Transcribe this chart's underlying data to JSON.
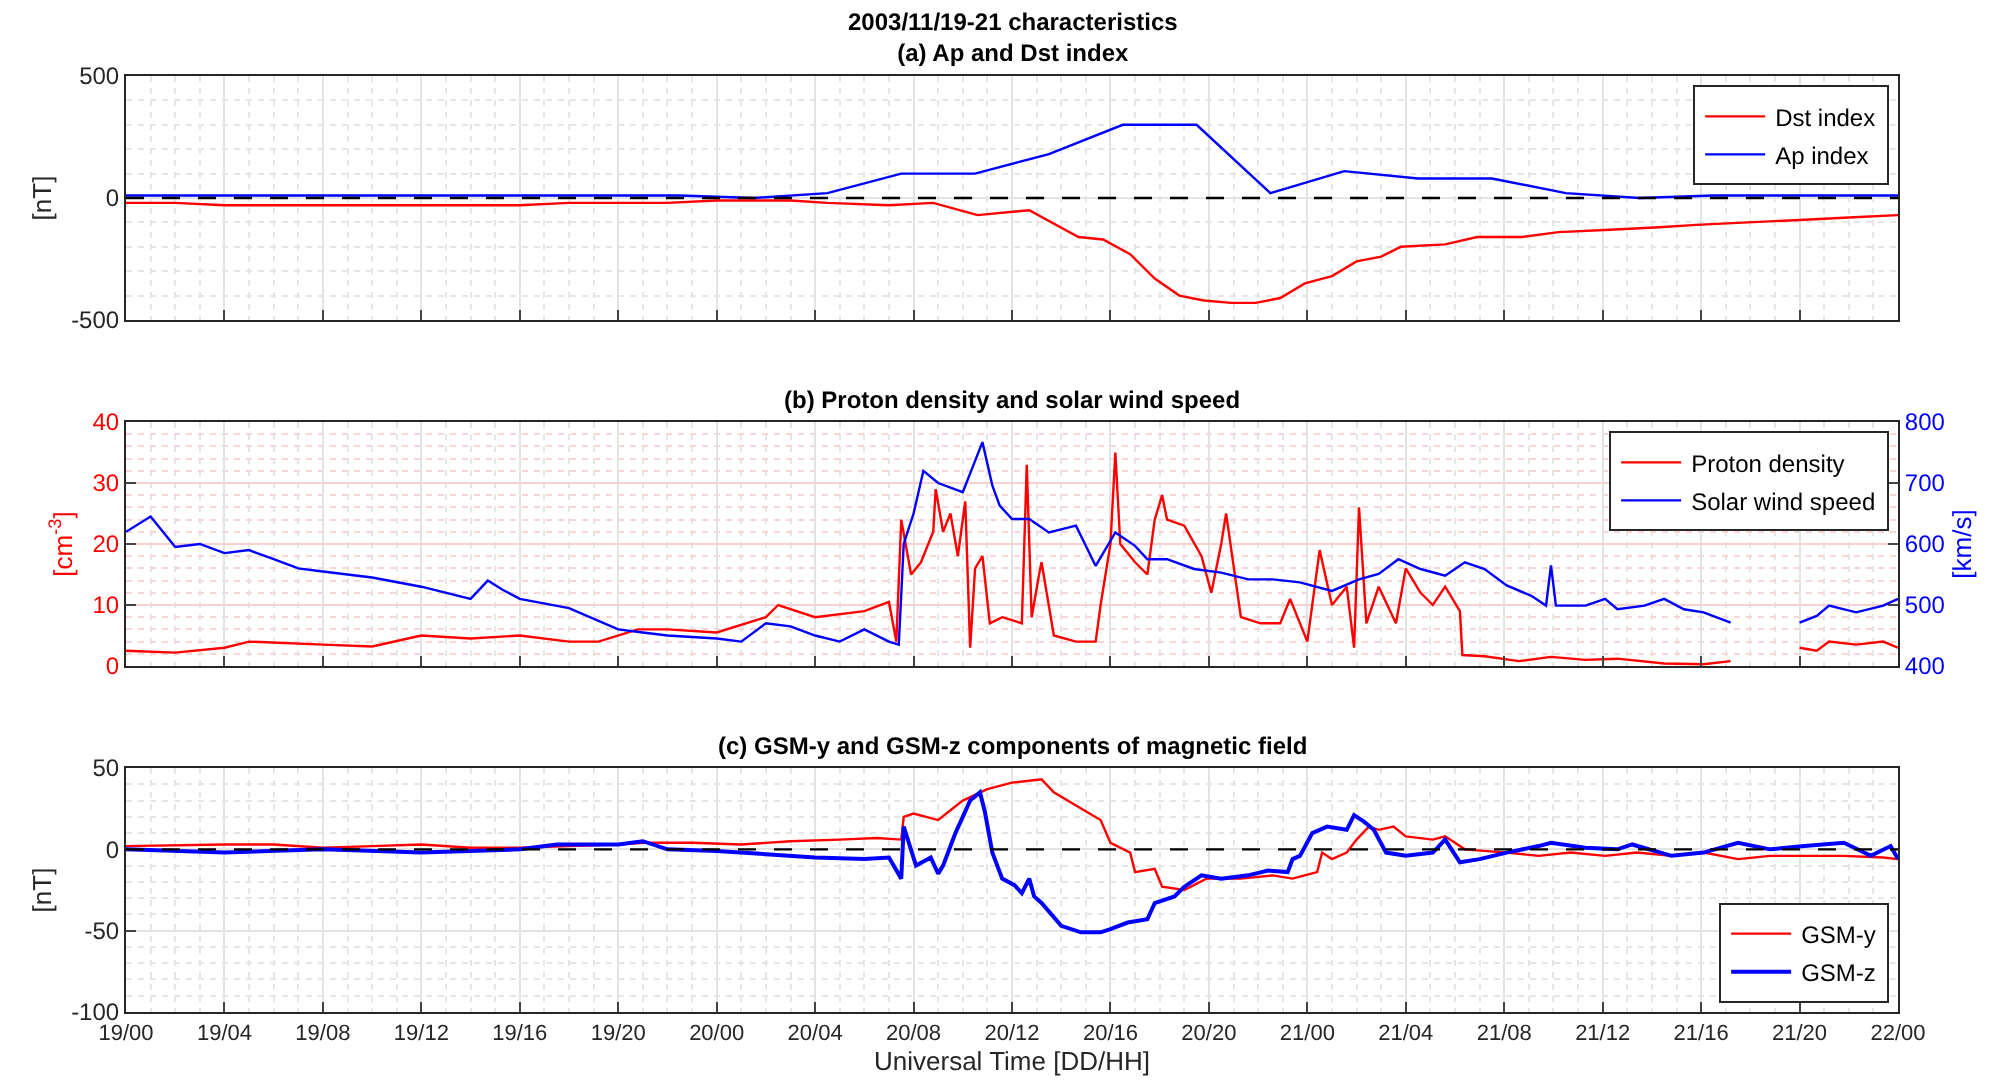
{
  "chart_data": [
    {
      "type": "line",
      "title": "2003/11/19-21 characteristics",
      "subtitle": "(a) Ap and Dst index",
      "ylabel": "[nT]",
      "xlim": [
        "2003-11-19T00:00",
        "2003-11-22T00:00"
      ],
      "xticks": [
        {
          "value": "2003-11-19T00:00",
          "label": null
        },
        {
          "value": "2003-11-19T04:00",
          "label": null
        },
        {
          "value": "2003-11-19T08:00",
          "label": null
        },
        {
          "value": "2003-11-19T12:00",
          "label": null
        },
        {
          "value": "2003-11-19T16:00",
          "label": null
        },
        {
          "value": "2003-11-19T20:00",
          "label": null
        },
        {
          "value": "2003-11-20T00:00",
          "label": null
        },
        {
          "value": "2003-11-20T04:00",
          "label": null
        },
        {
          "value": "2003-11-20T08:00",
          "label": null
        },
        {
          "value": "2003-11-20T12:00",
          "label": null
        },
        {
          "value": "2003-11-20T16:00",
          "label": null
        },
        {
          "value": "2003-11-20T20:00",
          "label": null
        },
        {
          "value": "2003-11-21T00:00",
          "label": null
        },
        {
          "value": "2003-11-21T04:00",
          "label": null
        },
        {
          "value": "2003-11-21T08:00",
          "label": null
        },
        {
          "value": "2003-11-21T12:00",
          "label": null
        },
        {
          "value": "2003-11-21T16:00",
          "label": null
        },
        {
          "value": "2003-11-21T20:00",
          "label": null
        },
        {
          "value": "2003-11-22T00:00",
          "label": null
        }
      ],
      "ylim": [
        -500,
        500
      ],
      "yticks": [
        -500,
        0,
        500
      ],
      "tick_labels": "y",
      "grid": true,
      "legend": "top right",
      "line_style": "solid",
      "ref_lines": [
        {
          "axis": "y",
          "value": 0,
          "color": "#000000",
          "line_style": "dashed"
        }
      ],
      "series": [
        {
          "name": "Dst index",
          "color": "#ff0000",
          "x": [
            "2003-11-19T00:00",
            "2003-11-19T02:00",
            "2003-11-19T04:00",
            "2003-11-19T06:00",
            "2003-11-19T08:00",
            "2003-11-19T10:00",
            "2003-11-19T12:00",
            "2003-11-19T14:00",
            "2003-11-19T16:00",
            "2003-11-19T18:00",
            "2003-11-19T20:00",
            "2003-11-19T22:00",
            "2003-11-20T00:00",
            "2003-11-20T02:00",
            "2003-11-20T03:00",
            "2003-11-20T04:30",
            "2003-11-20T07:00",
            "2003-11-20T08:48",
            "2003-11-20T10:36",
            "2003-11-20T12:42",
            "2003-11-20T14:42",
            "2003-11-20T15:42",
            "2003-11-20T16:48",
            "2003-11-20T17:48",
            "2003-11-20T18:48",
            "2003-11-20T19:48",
            "2003-11-20T20:54",
            "2003-11-20T21:54",
            "2003-11-20T22:54",
            "2003-11-20T23:54",
            "2003-11-21T01:00",
            "2003-11-21T02:00",
            "2003-11-21T03:00",
            "2003-11-21T03:48",
            "2003-11-21T05:36",
            "2003-11-21T06:54",
            "2003-11-21T08:42",
            "2003-11-21T10:12",
            "2003-11-21T12:18",
            "2003-11-21T14:18",
            "2003-11-21T15:48",
            "2003-11-21T17:54",
            "2003-11-21T20:00",
            "2003-11-21T22:00",
            "2003-11-22T00:00"
          ],
          "values": [
            -20,
            -20,
            -30,
            -30,
            -30,
            -30,
            -30,
            -30,
            -30,
            -20,
            -20,
            -20,
            -10,
            -10,
            -10,
            -20,
            -30,
            -20,
            -70,
            -50,
            -160,
            -170,
            -230,
            -330,
            -400,
            -420,
            -430,
            -430,
            -410,
            -350,
            -320,
            -260,
            -240,
            -200,
            -190,
            -160,
            -160,
            -140,
            -130,
            -120,
            -110,
            -100,
            -90,
            -80,
            -70
          ]
        },
        {
          "name": "Ap index",
          "color": "#0000ff",
          "x": [
            "2003-11-19T00:00",
            "2003-11-19T01:30",
            "2003-11-19T04:30",
            "2003-11-19T07:30",
            "2003-11-19T10:30",
            "2003-11-19T13:30",
            "2003-11-19T16:30",
            "2003-11-19T19:30",
            "2003-11-19T22:30",
            "2003-11-20T01:30",
            "2003-11-20T04:30",
            "2003-11-20T07:30",
            "2003-11-20T10:30",
            "2003-11-20T13:30",
            "2003-11-20T16:30",
            "2003-11-20T19:30",
            "2003-11-20T22:30",
            "2003-11-21T01:30",
            "2003-11-21T04:30",
            "2003-11-21T07:30",
            "2003-11-21T10:30",
            "2003-11-21T13:30",
            "2003-11-21T16:30",
            "2003-11-21T19:30",
            "2003-11-21T22:30",
            "2003-11-22T00:00"
          ],
          "values": [
            10,
            10,
            10,
            10,
            10,
            10,
            10,
            10,
            10,
            0,
            20,
            100,
            100,
            180,
            300,
            300,
            20,
            110,
            80,
            80,
            20,
            0,
            10,
            10,
            10,
            10
          ]
        }
      ]
    },
    {
      "type": "line",
      "title": "(b) Proton density and solar wind speed",
      "ylabel": "[cm$^{-3}$]",
      "y2label": "[km/s]",
      "xlim": [
        "2003-11-19T00:00",
        "2003-11-22T00:00"
      ],
      "xticks": [
        {
          "value": "2003-11-19T00:00",
          "label": null
        },
        {
          "value": "2003-11-19T04:00",
          "label": null
        },
        {
          "value": "2003-11-19T08:00",
          "label": null
        },
        {
          "value": "2003-11-19T12:00",
          "label": null
        },
        {
          "value": "2003-11-19T16:00",
          "label": null
        },
        {
          "value": "2003-11-19T20:00",
          "label": null
        },
        {
          "value": "2003-11-20T00:00",
          "label": null
        },
        {
          "value": "2003-11-20T04:00",
          "label": null
        },
        {
          "value": "2003-11-20T08:00",
          "label": null
        },
        {
          "value": "2003-11-20T12:00",
          "label": null
        },
        {
          "value": "2003-11-20T16:00",
          "label": null
        },
        {
          "value": "2003-11-20T20:00",
          "label": null
        },
        {
          "value": "2003-11-21T00:00",
          "label": null
        },
        {
          "value": "2003-11-21T04:00",
          "label": null
        },
        {
          "value": "2003-11-21T08:00",
          "label": null
        },
        {
          "value": "2003-11-21T12:00",
          "label": null
        },
        {
          "value": "2003-11-21T16:00",
          "label": null
        },
        {
          "value": "2003-11-21T20:00",
          "label": null
        },
        {
          "value": "2003-11-22T00:00",
          "label": null
        }
      ],
      "ylim": [
        0,
        40
      ],
      "yticks": [
        0,
        10,
        20,
        30,
        40
      ],
      "y2lim": [
        400,
        800
      ],
      "y2ticks": [
        400,
        500,
        600,
        700,
        800
      ],
      "tick_labels": "y",
      "grid": true,
      "legend": "top right",
      "line_style": "solid",
      "series": [
        {
          "name": "Proton density",
          "color": "#ff0000",
          "x": [
            "2003-11-19T00:00",
            "2003-11-19T02:00",
            "2003-11-19T04:00",
            "2003-11-19T05:00",
            "2003-11-19T08:00",
            "2003-11-19T10:00",
            "2003-11-19T12:00",
            "2003-11-19T14:00",
            "2003-11-19T16:00",
            "2003-11-19T18:00",
            "2003-11-19T19:12",
            "2003-11-19T20:48",
            "2003-11-19T22:00",
            "2003-11-20T00:00",
            "2003-11-20T02:00",
            "2003-11-20T02:30",
            "2003-11-20T04:00",
            "2003-11-20T06:00",
            "2003-11-20T07:00",
            "2003-11-20T07:18",
            "2003-11-20T07:30",
            "2003-11-20T07:54",
            "2003-11-20T08:18",
            "2003-11-20T08:48",
            "2003-11-20T08:54",
            "2003-11-20T09:12",
            "2003-11-20T09:30",
            "2003-11-20T09:48",
            "2003-11-20T10:06",
            "2003-11-20T10:18",
            "2003-11-20T10:30",
            "2003-11-20T10:48",
            "2003-11-20T11:06",
            "2003-11-20T11:36",
            "2003-11-20T12:24",
            "2003-11-20T12:36",
            "2003-11-20T12:48",
            "2003-11-20T13:06",
            "2003-11-20T13:12",
            "2003-11-20T13:42",
            "2003-11-20T14:36",
            "2003-11-20T15:24",
            "2003-11-20T15:36",
            "2003-11-20T16:00",
            "2003-11-20T16:12",
            "2003-11-20T16:24",
            "2003-11-20T17:00",
            "2003-11-20T17:30",
            "2003-11-20T17:48",
            "2003-11-20T18:06",
            "2003-11-20T18:18",
            "2003-11-20T19:00",
            "2003-11-20T19:42",
            "2003-11-20T20:06",
            "2003-11-20T20:30",
            "2003-11-20T20:42",
            "2003-11-20T21:18",
            "2003-11-20T22:06",
            "2003-11-20T22:54",
            "2003-11-20T23:18",
            "2003-11-21T00:00",
            "2003-11-21T00:30",
            "2003-11-21T01:00",
            "2003-11-21T01:36",
            "2003-11-21T01:54",
            "2003-11-21T02:06",
            "2003-11-21T02:24",
            "2003-11-21T02:54",
            "2003-11-21T03:36",
            "2003-11-21T04:00",
            "2003-11-21T04:36",
            "2003-11-21T05:06",
            "2003-11-21T05:36",
            "2003-11-21T06:12",
            "2003-11-21T06:18",
            "2003-11-21T07:12",
            "2003-11-21T08:36",
            "2003-11-21T09:54",
            "2003-11-21T11:18",
            "2003-11-21T12:36",
            "2003-11-21T14:30",
            "2003-11-21T16:06",
            "2003-11-21T17:12",
            "2003-11-21T18:30",
            "2003-11-21T20:00",
            "2003-11-21T20:42",
            "2003-11-21T21:12",
            "2003-11-21T22:18",
            "2003-11-21T23:24",
            "2003-11-22T00:00"
          ],
          "values": [
            2.5,
            2.2,
            3,
            4,
            3.5,
            3.2,
            5,
            4.5,
            5,
            4,
            4,
            6,
            6,
            5.5,
            8,
            10,
            8,
            9,
            10.5,
            4,
            24,
            15,
            17,
            22,
            29,
            22,
            25,
            18,
            27,
            3,
            16,
            18,
            7,
            8,
            7,
            33,
            8,
            15,
            17,
            5,
            4,
            4,
            10,
            20,
            35,
            20,
            17,
            15,
            24,
            28,
            24,
            23,
            18,
            12,
            20,
            25,
            8,
            7,
            7,
            11,
            4,
            19,
            10,
            13,
            3,
            26,
            7,
            13,
            7,
            16,
            12,
            10,
            13,
            9,
            1.8,
            1.6,
            0.8,
            1.5,
            1,
            1.2,
            0.4,
            0.3,
            0.8,
            null,
            3,
            2.5,
            4,
            3.5,
            4,
            3
          ]
        },
        {
          "name": "Solar wind speed",
          "color": "#0000ff",
          "axis": "y2",
          "x": [
            "2003-11-19T00:00",
            "2003-11-19T01:00",
            "2003-11-19T02:00",
            "2003-11-19T03:00",
            "2003-11-19T04:00",
            "2003-11-19T05:00",
            "2003-11-19T06:00",
            "2003-11-19T07:00",
            "2003-11-19T08:00",
            "2003-11-19T10:00",
            "2003-11-19T12:00",
            "2003-11-19T14:00",
            "2003-11-19T14:42",
            "2003-11-19T15:18",
            "2003-11-19T16:00",
            "2003-11-19T18:00",
            "2003-11-19T20:00",
            "2003-11-19T21:00",
            "2003-11-19T22:00",
            "2003-11-20T00:00",
            "2003-11-20T01:00",
            "2003-11-20T02:00",
            "2003-11-20T03:00",
            "2003-11-20T04:00",
            "2003-11-20T05:00",
            "2003-11-20T06:00",
            "2003-11-20T07:00",
            "2003-11-20T07:24",
            "2003-11-20T07:36",
            "2003-11-20T08:00",
            "2003-11-20T08:24",
            "2003-11-20T09:00",
            "2003-11-20T10:00",
            "2003-11-20T10:48",
            "2003-11-20T11:12",
            "2003-11-20T11:30",
            "2003-11-20T12:00",
            "2003-11-20T12:42",
            "2003-11-20T13:30",
            "2003-11-20T14:36",
            "2003-11-20T15:24",
            "2003-11-20T16:12",
            "2003-11-20T17:00",
            "2003-11-20T17:30",
            "2003-11-20T18:18",
            "2003-11-20T19:24",
            "2003-11-20T20:30",
            "2003-11-20T21:36",
            "2003-11-20T22:36",
            "2003-11-20T23:42",
            "2003-11-21T01:00",
            "2003-11-21T02:06",
            "2003-11-21T02:54",
            "2003-11-21T03:42",
            "2003-11-21T04:36",
            "2003-11-21T05:36",
            "2003-11-21T06:24",
            "2003-11-21T07:12",
            "2003-11-21T08:06",
            "2003-11-21T09:06",
            "2003-11-21T09:42",
            "2003-11-21T09:54",
            "2003-11-21T10:06",
            "2003-11-21T11:18",
            "2003-11-21T12:06",
            "2003-11-21T12:36",
            "2003-11-21T13:42",
            "2003-11-21T14:30",
            "2003-11-21T15:18",
            "2003-11-21T16:06",
            "2003-11-21T17:12",
            "2003-11-21T18:30",
            "2003-11-21T20:00",
            "2003-11-21T20:42",
            "2003-11-21T21:12",
            "2003-11-21T22:18",
            "2003-11-21T23:24",
            "2003-11-22T00:00"
          ],
          "values": [
            620,
            645,
            595,
            600,
            585,
            590,
            575,
            560,
            555,
            545,
            530,
            510,
            540,
            525,
            510,
            495,
            460,
            455,
            450,
            445,
            440,
            470,
            465,
            450,
            440,
            460,
            440,
            435,
            600,
            650,
            720,
            700,
            685,
            767,
            696,
            663,
            641,
            641,
            619,
            630,
            564,
            619,
            597,
            575,
            575,
            559,
            553,
            542,
            542,
            537,
            523,
            542,
            551,
            575,
            559,
            548,
            570,
            559,
            532,
            515,
            499,
            565,
            499,
            499,
            510,
            493,
            499,
            510,
            493,
            488,
            471,
            null,
            471,
            482,
            499,
            488,
            499,
            510
          ]
        }
      ]
    },
    {
      "type": "line",
      "title": "(c) GSM-y and GSM-z components of magnetic field",
      "xlabel": "Universal Time [DD/HH]",
      "ylabel": "[nT]",
      "xlim": [
        "2003-11-19T00:00",
        "2003-11-22T00:00"
      ],
      "xticks": [
        {
          "value": "2003-11-19T00:00",
          "label": "19/00"
        },
        {
          "value": "2003-11-19T04:00",
          "label": "19/04"
        },
        {
          "value": "2003-11-19T08:00",
          "label": "19/08"
        },
        {
          "value": "2003-11-19T12:00",
          "label": "19/12"
        },
        {
          "value": "2003-11-19T16:00",
          "label": "19/16"
        },
        {
          "value": "2003-11-19T20:00",
          "label": "19/20"
        },
        {
          "value": "2003-11-20T00:00",
          "label": "20/00"
        },
        {
          "value": "2003-11-20T04:00",
          "label": "20/04"
        },
        {
          "value": "2003-11-20T08:00",
          "label": "20/08"
        },
        {
          "value": "2003-11-20T12:00",
          "label": "20/12"
        },
        {
          "value": "2003-11-20T16:00",
          "label": "20/16"
        },
        {
          "value": "2003-11-20T20:00",
          "label": "20/20"
        },
        {
          "value": "2003-11-21T00:00",
          "label": "21/00"
        },
        {
          "value": "2003-11-21T04:00",
          "label": "21/04"
        },
        {
          "value": "2003-11-21T08:00",
          "label": "21/08"
        },
        {
          "value": "2003-11-21T12:00",
          "label": "21/12"
        },
        {
          "value": "2003-11-21T16:00",
          "label": "21/16"
        },
        {
          "value": "2003-11-21T20:00",
          "label": "21/20"
        },
        {
          "value": "2003-11-22T00:00",
          "label": "22/00"
        }
      ],
      "ylim": [
        -100,
        50
      ],
      "yticks": [
        -100,
        -50,
        0,
        50
      ],
      "grid": true,
      "legend": "bottom right",
      "line_style": "solid",
      "ref_lines": [
        {
          "axis": "y",
          "value": 0,
          "color": "#000000",
          "line_style": "dashed"
        }
      ],
      "series": [
        {
          "name": "GSM-y",
          "color": "#ff0000",
          "x": [
            "2003-11-19T00:00",
            "2003-11-19T04:00",
            "2003-11-19T06:00",
            "2003-11-19T08:00",
            "2003-11-19T10:00",
            "2003-11-19T12:00",
            "2003-11-19T14:00",
            "2003-11-19T16:00",
            "2003-11-19T18:00",
            "2003-11-19T20:00",
            "2003-11-19T21:00",
            "2003-11-19T23:00",
            "2003-11-20T01:00",
            "2003-11-20T03:00",
            "2003-11-20T05:00",
            "2003-11-20T06:30",
            "2003-11-20T07:30",
            "2003-11-20T07:36",
            "2003-11-20T08:00",
            "2003-11-20T09:00",
            "2003-11-20T10:00",
            "2003-11-20T11:00",
            "2003-11-20T12:00",
            "2003-11-20T13:12",
            "2003-11-20T13:42",
            "2003-11-20T14:36",
            "2003-11-20T15:36",
            "2003-11-20T16:00",
            "2003-11-20T16:48",
            "2003-11-20T17:00",
            "2003-11-20T17:48",
            "2003-11-20T18:06",
            "2003-11-20T19:00",
            "2003-11-20T19:54",
            "2003-11-20T21:18",
            "2003-11-20T22:36",
            "2003-11-20T23:24",
            "2003-11-21T00:24",
            "2003-11-21T00:36",
            "2003-11-21T01:00",
            "2003-11-21T01:36",
            "2003-11-21T02:00",
            "2003-11-21T02:30",
            "2003-11-21T02:54",
            "2003-11-21T03:30",
            "2003-11-21T04:00",
            "2003-11-21T05:06",
            "2003-11-21T05:36",
            "2003-11-21T06:24",
            "2003-11-21T08:06",
            "2003-11-21T09:24",
            "2003-11-21T10:42",
            "2003-11-21T12:06",
            "2003-11-21T13:24",
            "2003-11-21T14:48",
            "2003-11-21T16:06",
            "2003-11-21T17:30",
            "2003-11-21T18:48",
            "2003-11-21T20:12",
            "2003-11-21T21:48",
            "2003-11-21T23:24",
            "2003-11-22T00:00"
          ],
          "values": [
            2,
            3,
            3,
            1,
            2,
            3,
            1,
            1,
            2,
            3,
            4,
            4,
            3,
            5,
            6,
            7,
            6,
            20,
            22,
            18,
            30,
            37,
            41,
            43,
            35,
            27,
            18,
            4,
            -2,
            -14,
            -12,
            -23,
            -25,
            -18,
            -18,
            -16,
            -18,
            -14,
            -2,
            -6,
            -2,
            6,
            14,
            12,
            14,
            8,
            6,
            8,
            0,
            -2,
            -4,
            -2,
            -4,
            -2,
            -4,
            -2,
            -6,
            -4,
            -4,
            -4,
            -5,
            -6
          ]
        },
        {
          "name": "GSM-z",
          "color": "#0000ff",
          "x": [
            "2003-11-19T00:00",
            "2003-11-19T04:00",
            "2003-11-19T08:00",
            "2003-11-19T12:00",
            "2003-11-19T16:00",
            "2003-11-19T17:30",
            "2003-11-19T20:00",
            "2003-11-19T21:00",
            "2003-11-19T22:00",
            "2003-11-20T00:00",
            "2003-11-20T02:00",
            "2003-11-20T04:00",
            "2003-11-20T06:00",
            "2003-11-20T07:00",
            "2003-11-20T07:30",
            "2003-11-20T07:36",
            "2003-11-20T08:06",
            "2003-11-20T08:42",
            "2003-11-20T09:00",
            "2003-11-20T09:12",
            "2003-11-20T09:42",
            "2003-11-20T10:00",
            "2003-11-20T10:18",
            "2003-11-20T10:42",
            "2003-11-20T10:54",
            "2003-11-20T11:12",
            "2003-11-20T11:36",
            "2003-11-20T12:06",
            "2003-11-20T12:24",
            "2003-11-20T12:42",
            "2003-11-20T12:54",
            "2003-11-20T13:12",
            "2003-11-20T14:00",
            "2003-11-20T14:48",
            "2003-11-20T15:36",
            "2003-11-20T16:00",
            "2003-11-20T16:42",
            "2003-11-20T17:30",
            "2003-11-20T17:48",
            "2003-11-20T18:36",
            "2003-11-20T19:00",
            "2003-11-20T19:42",
            "2003-11-20T20:30",
            "2003-11-20T21:36",
            "2003-11-20T22:24",
            "2003-11-20T23:12",
            "2003-11-20T23:24",
            "2003-11-20T23:42",
            "2003-11-21T00:12",
            "2003-11-21T00:48",
            "2003-11-21T01:36",
            "2003-11-21T01:54",
            "2003-11-21T02:18",
            "2003-11-21T02:42",
            "2003-11-21T03:12",
            "2003-11-21T04:00",
            "2003-11-21T05:06",
            "2003-11-21T05:36",
            "2003-11-21T06:12",
            "2003-11-21T07:00",
            "2003-11-21T08:06",
            "2003-11-21T09:24",
            "2003-11-21T09:54",
            "2003-11-21T11:18",
            "2003-11-21T12:36",
            "2003-11-21T13:12",
            "2003-11-21T14:48",
            "2003-11-21T16:06",
            "2003-11-21T17:30",
            "2003-11-21T18:48",
            "2003-11-21T20:12",
            "2003-11-21T21:48",
            "2003-11-21T22:54",
            "2003-11-21T23:42",
            "2003-11-22T00:00"
          ],
          "values": [
            0,
            -2,
            0,
            -2,
            0,
            3,
            3,
            5,
            0,
            -1,
            -3,
            -5,
            -6,
            -5,
            -18,
            14,
            -10,
            -5,
            -15,
            -10,
            10,
            20,
            30,
            35,
            23,
            -2,
            -18,
            -22,
            -27,
            -18,
            -29,
            -33,
            -47,
            -51,
            -51,
            -49,
            -45,
            -43,
            -33,
            -29,
            -23,
            -16,
            -18,
            -16,
            -13,
            -14,
            -6,
            -4,
            10,
            14,
            12,
            21,
            17,
            12,
            -2,
            -4,
            -2,
            6,
            -8,
            -6,
            -2,
            2,
            4,
            1,
            0,
            3,
            -4,
            -2,
            4,
            0,
            2,
            4,
            -4,
            2,
            -6
          ]
        }
      ]
    }
  ]
}
